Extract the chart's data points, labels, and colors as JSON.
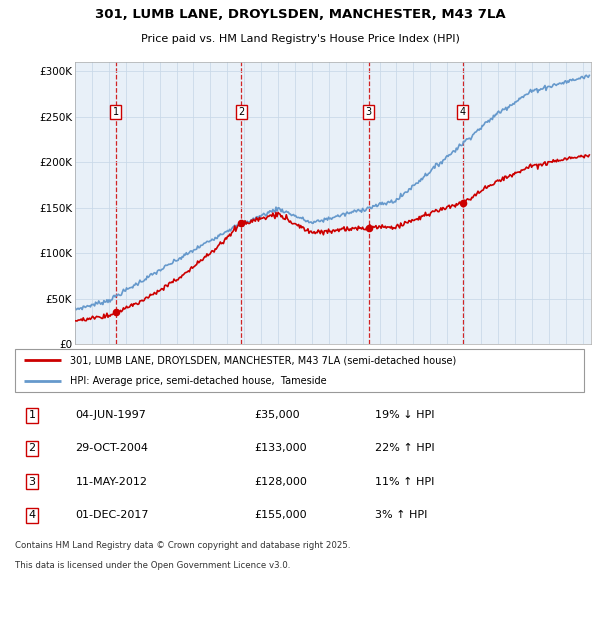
{
  "title_line1": "301, LUMB LANE, DROYLSDEN, MANCHESTER, M43 7LA",
  "title_line2": "Price paid vs. HM Land Registry's House Price Index (HPI)",
  "sale_annotations": [
    {
      "num": "1",
      "date": "04-JUN-1997",
      "price": "£35,000",
      "pct": "19% ↓ HPI"
    },
    {
      "num": "2",
      "date": "29-OCT-2004",
      "price": "£133,000",
      "pct": "22% ↑ HPI"
    },
    {
      "num": "3",
      "date": "11-MAY-2012",
      "price": "£128,000",
      "pct": "11% ↑ HPI"
    },
    {
      "num": "4",
      "date": "01-DEC-2017",
      "price": "£155,000",
      "pct": "3% ↑ HPI"
    }
  ],
  "legend_label_red": "301, LUMB LANE, DROYLSDEN, MANCHESTER, M43 7LA (semi-detached house)",
  "legend_label_blue": "HPI: Average price, semi-detached house,  Tameside",
  "footer": [
    "Contains HM Land Registry data © Crown copyright and database right 2025.",
    "This data is licensed under the Open Government Licence v3.0."
  ],
  "ylim": [
    0,
    310000
  ],
  "yticks": [
    0,
    50000,
    100000,
    150000,
    200000,
    250000,
    300000
  ],
  "ytick_labels": [
    "£0",
    "£50K",
    "£100K",
    "£150K",
    "£200K",
    "£250K",
    "£300K"
  ],
  "plot_bg_color": "#e8f0f8",
  "red_color": "#cc0000",
  "blue_color": "#6699cc",
  "dashed_color": "#cc0000",
  "box_border_color": "#cc0000",
  "sale_dates_float": [
    1997.42,
    2004.83,
    2012.36,
    2017.92
  ],
  "sale_prices": [
    35000,
    133000,
    128000,
    155000
  ],
  "sale_labels": [
    "1",
    "2",
    "3",
    "4"
  ]
}
